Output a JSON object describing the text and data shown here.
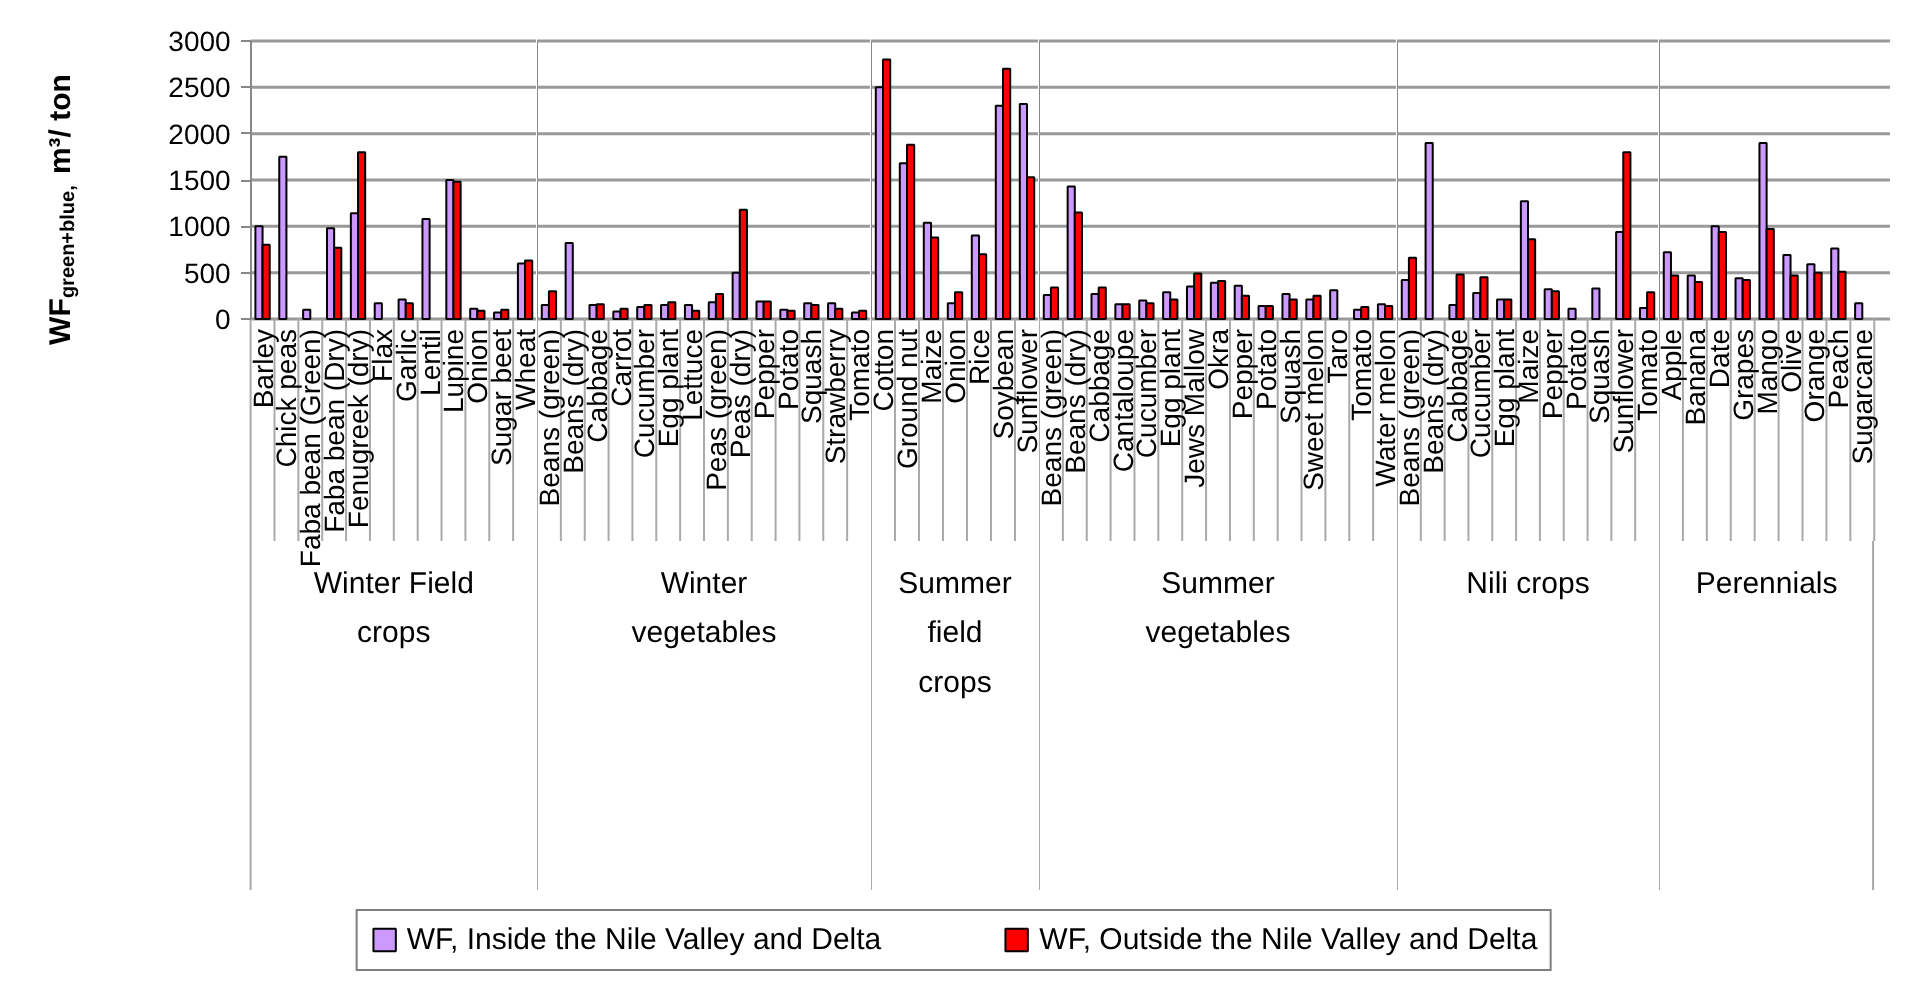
{
  "chart_data": [
    {
      "type": "bar",
      "xlabel": "Winter Field crops",
      "ylabel": "WF$_{green+blue,}$ m³/ ton",
      "categories": [
        "Barley",
        "Chick peas",
        "Faba bean (Green)",
        "Faba bean (Dry)",
        "Fenugreek (dry)",
        "Flax",
        "Garlic",
        "Lentil",
        "Lupine",
        "Onion",
        "Sugar beet",
        "Wheat"
      ],
      "series": [
        {
          "name": "WF, Inside the Nile Valley and Delta",
          "color": "#cc99ff",
          "values": [
            1000,
            1750,
            100,
            980,
            1140,
            170,
            210,
            1080,
            1500,
            110,
            70,
            600
          ]
        },
        {
          "name": "WF, Outside the Nile Valley and Delta",
          "color": "#ff0000",
          "values": [
            800,
            null,
            null,
            770,
            1800,
            null,
            170,
            null,
            1480,
            90,
            100,
            630
          ]
        }
      ],
      "ylim": [
        0,
        3000
      ],
      "yticks": [
        0,
        500,
        1000,
        1500,
        2000,
        2500,
        3000
      ],
      "grid": "y",
      "legend": "bottom"
    },
    {
      "type": "bar",
      "xlabel": "Winter vegetables",
      "tick_labels": "x",
      "categories": [
        "Beans (green)",
        "Beans (dry)",
        "Cabbage",
        "Carrot",
        "Cucumber",
        "Egg plant",
        "Lettuce",
        "Peas (green)",
        "Peas (dry)",
        "Pepper",
        "Potato",
        "Squash",
        "Strawberry",
        "Tomato"
      ],
      "series": [
        {
          "color": "#cc99ff",
          "values": [
            150,
            820,
            150,
            80,
            130,
            150,
            150,
            180,
            500,
            190,
            100,
            170,
            170,
            70
          ]
        },
        {
          "color": "#ff0000",
          "values": [
            300,
            null,
            160,
            110,
            150,
            180,
            90,
            270,
            1180,
            190,
            90,
            150,
            110,
            90
          ]
        }
      ],
      "ylim": [
        0,
        3000
      ],
      "yticks": [
        0,
        500,
        1000,
        1500,
        2000,
        2500,
        3000
      ],
      "grid": "y"
    },
    {
      "type": "bar",
      "xlabel": "Summer field crops",
      "tick_labels": "x",
      "categories": [
        "Cotton",
        "Ground nut",
        "Maize",
        "Onion",
        "Rice",
        "Soybean",
        "Sunflower"
      ],
      "series": [
        {
          "color": "#cc99ff",
          "values": [
            2500,
            1680,
            1040,
            170,
            900,
            2300,
            2320
          ]
        },
        {
          "color": "#ff0000",
          "values": [
            2800,
            1880,
            880,
            290,
            700,
            2700,
            1530
          ]
        }
      ],
      "ylim": [
        0,
        3000
      ],
      "yticks": [
        0,
        500,
        1000,
        1500,
        2000,
        2500,
        3000
      ],
      "grid": "y"
    },
    {
      "type": "bar",
      "xlabel": "Summer vegetables",
      "tick_labels": "x",
      "categories": [
        "Beans (green)",
        "Beans (dry)",
        "Cabbage",
        "Cantaloupe",
        "Cucumber",
        "Egg plant",
        "Jews Mallow",
        "Okra",
        "Pepper",
        "Potato",
        "Squash",
        "Sweet melon",
        "Taro",
        "Tomato",
        "Water melon"
      ],
      "series": [
        {
          "color": "#cc99ff",
          "values": [
            260,
            1430,
            270,
            160,
            200,
            290,
            350,
            390,
            360,
            140,
            270,
            210,
            310,
            100,
            160
          ]
        },
        {
          "color": "#ff0000",
          "values": [
            340,
            1150,
            340,
            160,
            170,
            210,
            490,
            410,
            250,
            140,
            210,
            250,
            null,
            130,
            140
          ]
        }
      ],
      "ylim": [
        0,
        3000
      ],
      "yticks": [
        0,
        500,
        1000,
        1500,
        2000,
        2500,
        3000
      ],
      "grid": "y"
    },
    {
      "type": "bar",
      "xlabel": "Nili crops",
      "tick_labels": "x",
      "categories": [
        "Beans (green)",
        "Beans (dry)",
        "Cabbage",
        "Cucumber",
        "Egg plant",
        "Maize",
        "Pepper",
        "Potato",
        "Squash",
        "Sunflower",
        "Tomato"
      ],
      "series": [
        {
          "color": "#cc99ff",
          "values": [
            420,
            1900,
            150,
            280,
            210,
            1270,
            320,
            110,
            330,
            940,
            120
          ]
        },
        {
          "color": "#ff0000",
          "values": [
            660,
            null,
            480,
            450,
            210,
            860,
            300,
            null,
            null,
            1800,
            290
          ]
        }
      ],
      "ylim": [
        0,
        3000
      ],
      "yticks": [
        0,
        500,
        1000,
        1500,
        2000,
        2500,
        3000
      ],
      "grid": "y"
    },
    {
      "type": "bar",
      "xlabel": "Perennials",
      "tick_labels": "x",
      "categories": [
        "Apple",
        "Banana",
        "Date",
        "Grapes",
        "Mango",
        "Olive",
        "Orange",
        "Peach",
        "Sugarcane"
      ],
      "series": [
        {
          "color": "#cc99ff",
          "values": [
            720,
            470,
            1000,
            440,
            1900,
            690,
            590,
            760,
            170
          ]
        },
        {
          "color": "#ff0000",
          "values": [
            470,
            400,
            940,
            420,
            970,
            470,
            500,
            510,
            null
          ]
        }
      ],
      "ylim": [
        0,
        3000
      ],
      "yticks": [
        0,
        500,
        1000,
        1500,
        2000,
        2500,
        3000
      ],
      "grid": "y"
    }
  ]
}
